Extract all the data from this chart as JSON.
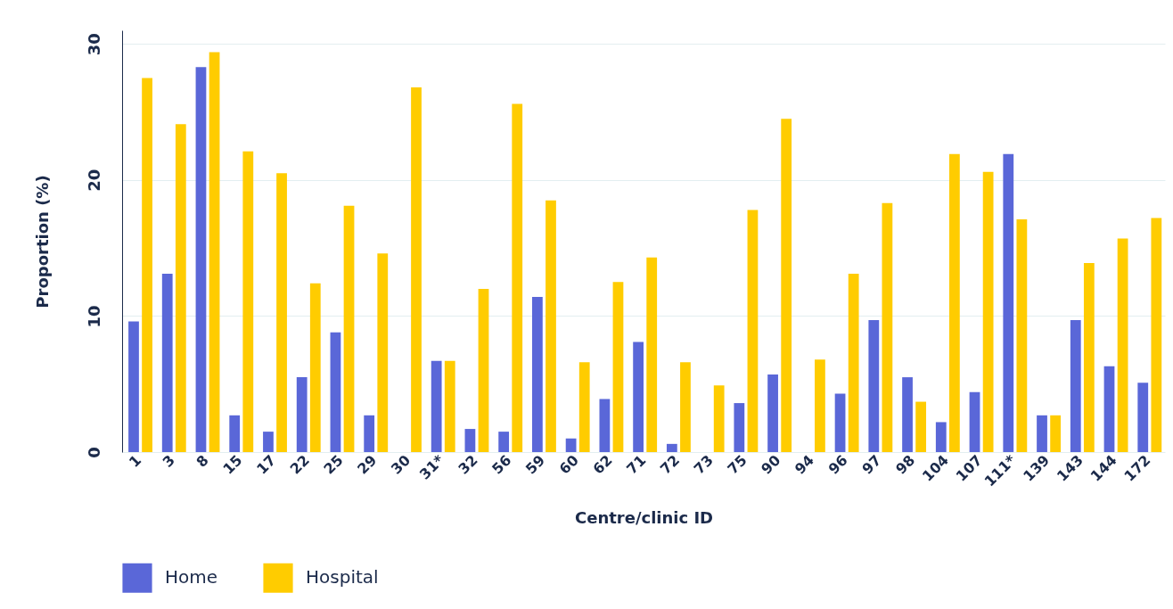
{
  "chart_data": {
    "type": "bar",
    "xlabel": "Centre/clinic ID",
    "ylabel": "Proportion (%)",
    "categories": [
      "1",
      "3",
      "8",
      "15",
      "17",
      "22",
      "25",
      "29",
      "30",
      "31*",
      "32",
      "56",
      "59",
      "60",
      "62",
      "71",
      "72",
      "73",
      "75",
      "90",
      "94",
      "96",
      "97",
      "98",
      "104",
      "107",
      "111*",
      "139",
      "143",
      "144",
      "172"
    ],
    "series": [
      {
        "name": "Home",
        "color": "#5a67d8",
        "values": [
          9.6,
          13.1,
          28.3,
          2.7,
          1.5,
          5.5,
          8.8,
          2.7,
          null,
          6.7,
          1.7,
          1.5,
          11.4,
          1.0,
          3.9,
          8.1,
          0.6,
          null,
          3.6,
          5.7,
          null,
          4.3,
          9.7,
          5.5,
          2.2,
          4.4,
          21.9,
          2.7,
          9.7,
          6.3,
          5.1
        ]
      },
      {
        "name": "Hospital",
        "color": "#ffcc00",
        "values": [
          27.5,
          24.1,
          29.4,
          22.1,
          20.5,
          12.4,
          18.1,
          14.6,
          26.8,
          6.7,
          12.0,
          25.6,
          18.5,
          6.6,
          12.5,
          14.3,
          6.6,
          4.9,
          17.8,
          24.5,
          6.8,
          13.1,
          18.3,
          3.7,
          21.9,
          20.6,
          17.1,
          2.7,
          13.9,
          15.7,
          17.2
        ]
      }
    ],
    "ylim": [
      0,
      31
    ],
    "yticks": [
      0,
      10,
      20,
      30
    ],
    "grid": "y",
    "legend": "bottom"
  }
}
